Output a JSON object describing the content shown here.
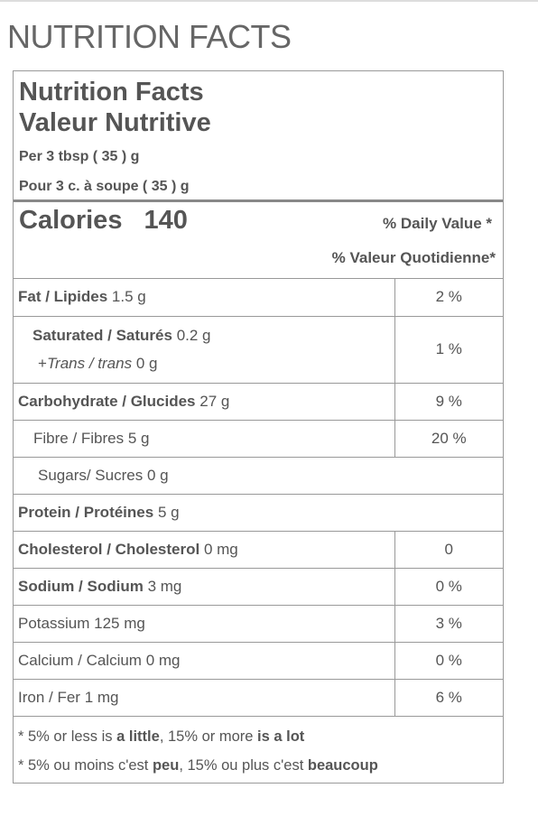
{
  "page_title": "NUTRITION FACTS",
  "label": {
    "title_en": "Nutrition Facts",
    "title_fr": "Valeur Nutritive",
    "serving_en": "Per 3 tbsp ( 35 ) g",
    "serving_fr": "Pour 3 c. à soupe ( 35 ) g",
    "calories_label": "Calories",
    "calories": 140,
    "dv_en": "% Daily Value *",
    "dv_fr": "% Valeur Quotidienne*",
    "rows": [
      {
        "name": "Fat / Lipides",
        "amount": "1.5 g",
        "dv": "2 %"
      },
      {
        "name": "Saturated / Saturés",
        "amount": "0.2 g",
        "sub_prefix": "+",
        "sub_name": "Trans / trans",
        "sub_amount": "0 g",
        "dv": "1 %"
      },
      {
        "name": "Carbohydrate / Glucides",
        "amount": "27 g",
        "dv": "9 %"
      },
      {
        "name": "Fibre / Fibres",
        "amount": "5 g",
        "dv": "20 %"
      },
      {
        "name": "Sugars/ Sucres",
        "amount": "0 g"
      },
      {
        "name": "Protein / Protéines",
        "amount": "5 g"
      },
      {
        "name": "Cholesterol / Cholesterol",
        "amount": "0 mg",
        "dv": "0"
      },
      {
        "name": "Sodium / Sodium",
        "amount": "3 mg",
        "dv": "0 %"
      },
      {
        "name": "Potassium",
        "amount": "125 mg",
        "dv": "3 %"
      },
      {
        "name": "Calcium / Calcium",
        "amount": "0 mg",
        "dv": "0 %"
      },
      {
        "name": "Iron / Fer",
        "amount": "1 mg",
        "dv": "6 %"
      }
    ],
    "footnote_en": [
      "* 5% or less is ",
      "a little",
      ", 15% or more ",
      "is a lot"
    ],
    "footnote_fr": [
      "* 5% ou moins c'est ",
      "peu",
      ", 15% ou plus c'est ",
      "beaucoup"
    ]
  }
}
